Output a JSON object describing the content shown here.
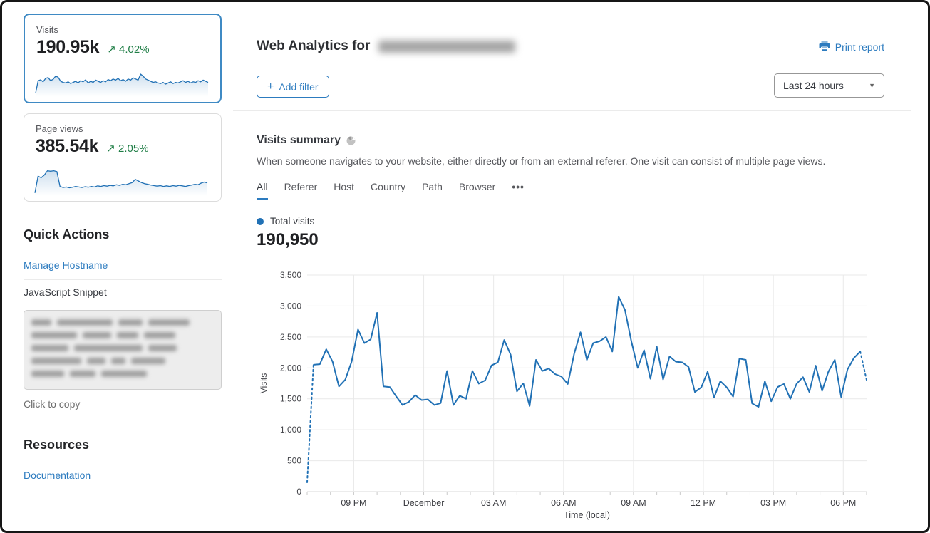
{
  "colors": {
    "link_blue": "#2c7bbf",
    "chart_line": "#2171b5",
    "positive_green": "#1e7d45",
    "grid": "#e9e9e9",
    "axis": "#d9d9d9",
    "tick_text": "#55565b"
  },
  "icons": {
    "trend_up": "↗",
    "plus": "+",
    "caret_down": "▼",
    "more_dots": "•••"
  },
  "sidebar": {
    "stat_cards": [
      {
        "label": "Visits",
        "value": "190.95k",
        "delta": "4.02%",
        "selected": true,
        "spark": [
          8,
          52,
          55,
          48,
          60,
          63,
          52,
          57,
          68,
          64,
          50,
          46,
          44,
          48,
          42,
          46,
          50,
          44,
          52,
          48,
          55,
          44,
          50,
          46,
          54,
          50,
          46,
          52,
          48,
          56,
          52,
          58,
          54,
          60,
          52,
          56,
          50,
          58,
          54,
          62,
          58,
          54,
          75,
          68,
          58,
          54,
          50,
          46,
          48,
          44,
          42,
          46,
          40,
          44,
          48,
          42,
          46,
          44,
          48,
          52,
          46,
          50,
          44,
          48,
          46,
          52,
          48,
          54,
          50,
          46
        ]
      },
      {
        "label": "Page views",
        "value": "385.54k",
        "delta": "2.05%",
        "selected": false,
        "spark": [
          6,
          68,
          62,
          72,
          88,
          86,
          88,
          85,
          30,
          26,
          28,
          25,
          27,
          30,
          28,
          26,
          29,
          27,
          30,
          28,
          32,
          30,
          33,
          31,
          34,
          32,
          36,
          34,
          38,
          36,
          40,
          44,
          56,
          50,
          44,
          40,
          38,
          35,
          33,
          31,
          33,
          30,
          32,
          30,
          33,
          31,
          34,
          32,
          30,
          33,
          35,
          38,
          36,
          42,
          46,
          43
        ]
      }
    ],
    "quick_actions": {
      "title": "Quick Actions",
      "manage_link": "Manage Hostname",
      "snippet_label": "JavaScript Snippet",
      "snippet_hint": "Click to copy"
    },
    "resources": {
      "title": "Resources",
      "doc_link": "Documentation"
    }
  },
  "header": {
    "title": "Web Analytics for",
    "print_label": "Print report",
    "add_filter_label": "Add filter"
  },
  "controls": {
    "time_range": "Last 24 hours"
  },
  "summary": {
    "title": "Visits summary",
    "description": "When someone navigates to your website, either directly or from an external referer. One visit can consist of multiple page views.",
    "tabs": [
      {
        "label": "All",
        "active": true
      },
      {
        "label": "Referer",
        "active": false
      },
      {
        "label": "Host",
        "active": false
      },
      {
        "label": "Country",
        "active": false
      },
      {
        "label": "Path",
        "active": false
      },
      {
        "label": "Browser",
        "active": false
      }
    ],
    "legend_label": "Total visits",
    "total_value": "190,950"
  },
  "chart_data": {
    "type": "line",
    "title": "Total visits",
    "xlabel": "Time (local)",
    "ylabel": "Visits",
    "ylim": [
      0,
      3500
    ],
    "y_ticks": [
      0,
      500,
      1000,
      1500,
      2000,
      2500,
      3000,
      3500
    ],
    "grid": true,
    "legend_position": "top-left",
    "x_tick_unit_count": 24,
    "x_ticks": [
      {
        "pos": 2,
        "label": "09 PM"
      },
      {
        "pos": 5,
        "label": "December"
      },
      {
        "pos": 8,
        "label": "03 AM"
      },
      {
        "pos": 11,
        "label": "06 AM"
      },
      {
        "pos": 14,
        "label": "09 AM"
      },
      {
        "pos": 17,
        "label": "12 PM"
      },
      {
        "pos": 20,
        "label": "03 PM"
      },
      {
        "pos": 23,
        "label": "06 PM"
      }
    ],
    "series": [
      {
        "name": "Total visits",
        "color": "#2171b5",
        "dashed_head_points": 2,
        "dashed_tail_points": 2,
        "values": [
          150,
          2050,
          2060,
          2300,
          2100,
          1700,
          1810,
          2100,
          2620,
          2400,
          2460,
          2890,
          1700,
          1690,
          1540,
          1400,
          1450,
          1560,
          1480,
          1490,
          1400,
          1430,
          1950,
          1400,
          1550,
          1500,
          1950,
          1745,
          1800,
          2040,
          2090,
          2450,
          2215,
          1620,
          1750,
          1385,
          2130,
          1950,
          1990,
          1900,
          1860,
          1740,
          2230,
          2575,
          2130,
          2400,
          2430,
          2500,
          2265,
          3150,
          2935,
          2430,
          2000,
          2285,
          1825,
          2345,
          1815,
          2185,
          2100,
          2090,
          2015,
          1610,
          1685,
          1940,
          1520,
          1785,
          1685,
          1535,
          2150,
          2130,
          1425,
          1370,
          1785,
          1460,
          1690,
          1740,
          1500,
          1745,
          1850,
          1610,
          2035,
          1630,
          1940,
          2130,
          1530,
          1975,
          2160,
          2265,
          1805
        ]
      }
    ]
  }
}
